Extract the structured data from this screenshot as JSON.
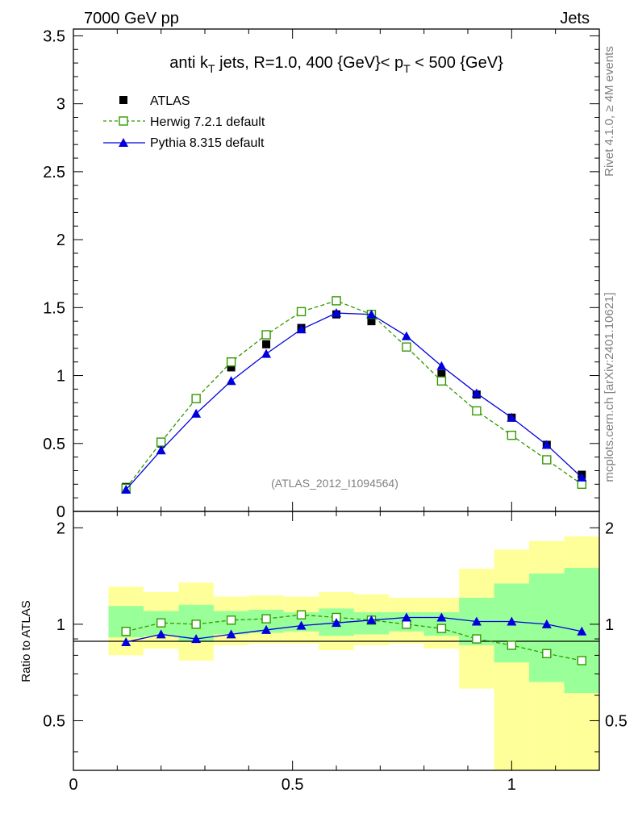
{
  "header": {
    "left": "7000 GeV pp",
    "right": "Jets"
  },
  "side_labels": {
    "rivet": "Rivet 4.1.0, ≥ 4M events",
    "mcplots": "mcplots.cern.ch [arXiv:2401.10621]"
  },
  "chart_data": [
    {
      "type": "line",
      "panel": "main",
      "title": "anti k_T jets, R=1.0,  400 {GeV}< p_T < 500 {GeV}",
      "title_parts": {
        "a": "anti k",
        "sub1": "T",
        "b": " jets, R=1.0,  400 {GeV}< p",
        "sub2": "T",
        "c": " < 500 {GeV}"
      },
      "watermark": "(ATLAS_2012_I1094564)",
      "xlabel": "",
      "ylabel": "",
      "xlim": [
        0,
        1.2
      ],
      "ylim": [
        0,
        3.55
      ],
      "yticks": [
        0,
        0.5,
        1,
        1.5,
        2,
        2.5,
        3,
        3.5
      ],
      "ytick_labels": [
        "0",
        "0.5",
        "1",
        "1.5",
        "2",
        "2.5",
        "3",
        "3.5"
      ],
      "x": [
        0.12,
        0.2,
        0.28,
        0.36,
        0.44,
        0.52,
        0.6,
        0.68,
        0.76,
        0.84,
        0.92,
        1.0,
        1.08,
        1.16
      ],
      "series": [
        {
          "name": "ATLAS",
          "style": "square-filled",
          "color": "#000000",
          "values": [
            0.18,
            0.5,
            0.83,
            1.06,
            1.23,
            1.35,
            1.45,
            1.4,
            1.21,
            1.01,
            0.86,
            0.69,
            0.49,
            0.27
          ]
        },
        {
          "name": "Herwig 7.2.1 default",
          "style": "square-open-dashed",
          "color": "#339900",
          "values": [
            0.17,
            0.51,
            0.83,
            1.1,
            1.3,
            1.47,
            1.55,
            1.45,
            1.21,
            0.96,
            0.74,
            0.56,
            0.38,
            0.2
          ]
        },
        {
          "name": "Pythia 8.315 default",
          "style": "triangle-solid",
          "color": "#0000dd",
          "values": [
            0.16,
            0.45,
            0.72,
            0.96,
            1.16,
            1.34,
            1.46,
            1.45,
            1.29,
            1.07,
            0.87,
            0.69,
            0.49,
            0.25
          ]
        }
      ]
    },
    {
      "type": "line",
      "panel": "ratio",
      "ylabel": "Ratio to ATLAS",
      "xlabel": "",
      "xlim": [
        0,
        1.2
      ],
      "ylim": [
        0.35,
        2.25
      ],
      "yticks": [
        0.5,
        1,
        2
      ],
      "ytick_labels": [
        "0.5",
        "1",
        "2"
      ],
      "xticks": [
        0,
        0.5,
        1
      ],
      "xtick_labels": [
        "0",
        "0.5",
        "1"
      ],
      "bins": [
        [
          0.08,
          0.16
        ],
        [
          0.16,
          0.24
        ],
        [
          0.24,
          0.32
        ],
        [
          0.32,
          0.4
        ],
        [
          0.4,
          0.48
        ],
        [
          0.48,
          0.56
        ],
        [
          0.56,
          0.64
        ],
        [
          0.64,
          0.72
        ],
        [
          0.72,
          0.8
        ],
        [
          0.8,
          0.88
        ],
        [
          0.88,
          0.96
        ],
        [
          0.96,
          1.04
        ],
        [
          1.04,
          1.12
        ],
        [
          1.12,
          1.2
        ]
      ],
      "band_yellow": [
        [
          0.8,
          1.31
        ],
        [
          0.84,
          1.26
        ],
        [
          0.77,
          1.35
        ],
        [
          0.86,
          1.22
        ],
        [
          0.87,
          1.23
        ],
        [
          0.87,
          1.22
        ],
        [
          0.83,
          1.26
        ],
        [
          0.86,
          1.24
        ],
        [
          0.87,
          1.21
        ],
        [
          0.84,
          1.21
        ],
        [
          0.63,
          1.49
        ],
        [
          0.35,
          1.71
        ],
        [
          0.35,
          1.82
        ],
        [
          0.35,
          1.88
        ]
      ],
      "band_green": [
        [
          0.91,
          1.14
        ],
        [
          0.92,
          1.1
        ],
        [
          0.88,
          1.15
        ],
        [
          0.93,
          1.1
        ],
        [
          0.94,
          1.11
        ],
        [
          0.95,
          1.09
        ],
        [
          0.92,
          1.12
        ],
        [
          0.93,
          1.09
        ],
        [
          0.95,
          1.09
        ],
        [
          0.92,
          1.09
        ],
        [
          0.86,
          1.21
        ],
        [
          0.76,
          1.34
        ],
        [
          0.66,
          1.44
        ],
        [
          0.61,
          1.5
        ]
      ],
      "x": [
        0.12,
        0.2,
        0.28,
        0.36,
        0.44,
        0.52,
        0.6,
        0.68,
        0.76,
        0.84,
        0.92,
        1.0,
        1.08,
        1.16
      ],
      "series": [
        {
          "name": "Herwig 7.2.1 default",
          "style": "square-open-dashed",
          "color": "#339900",
          "values": [
            0.95,
            1.01,
            1.0,
            1.03,
            1.04,
            1.07,
            1.05,
            1.03,
            1.0,
            0.97,
            0.9,
            0.86,
            0.81,
            0.77
          ]
        },
        {
          "name": "Pythia 8.315 default",
          "style": "triangle-solid",
          "color": "#0000dd",
          "values": [
            0.88,
            0.93,
            0.9,
            0.93,
            0.96,
            0.99,
            1.01,
            1.03,
            1.05,
            1.05,
            1.02,
            1.02,
            1.0,
            0.95
          ]
        }
      ]
    }
  ]
}
